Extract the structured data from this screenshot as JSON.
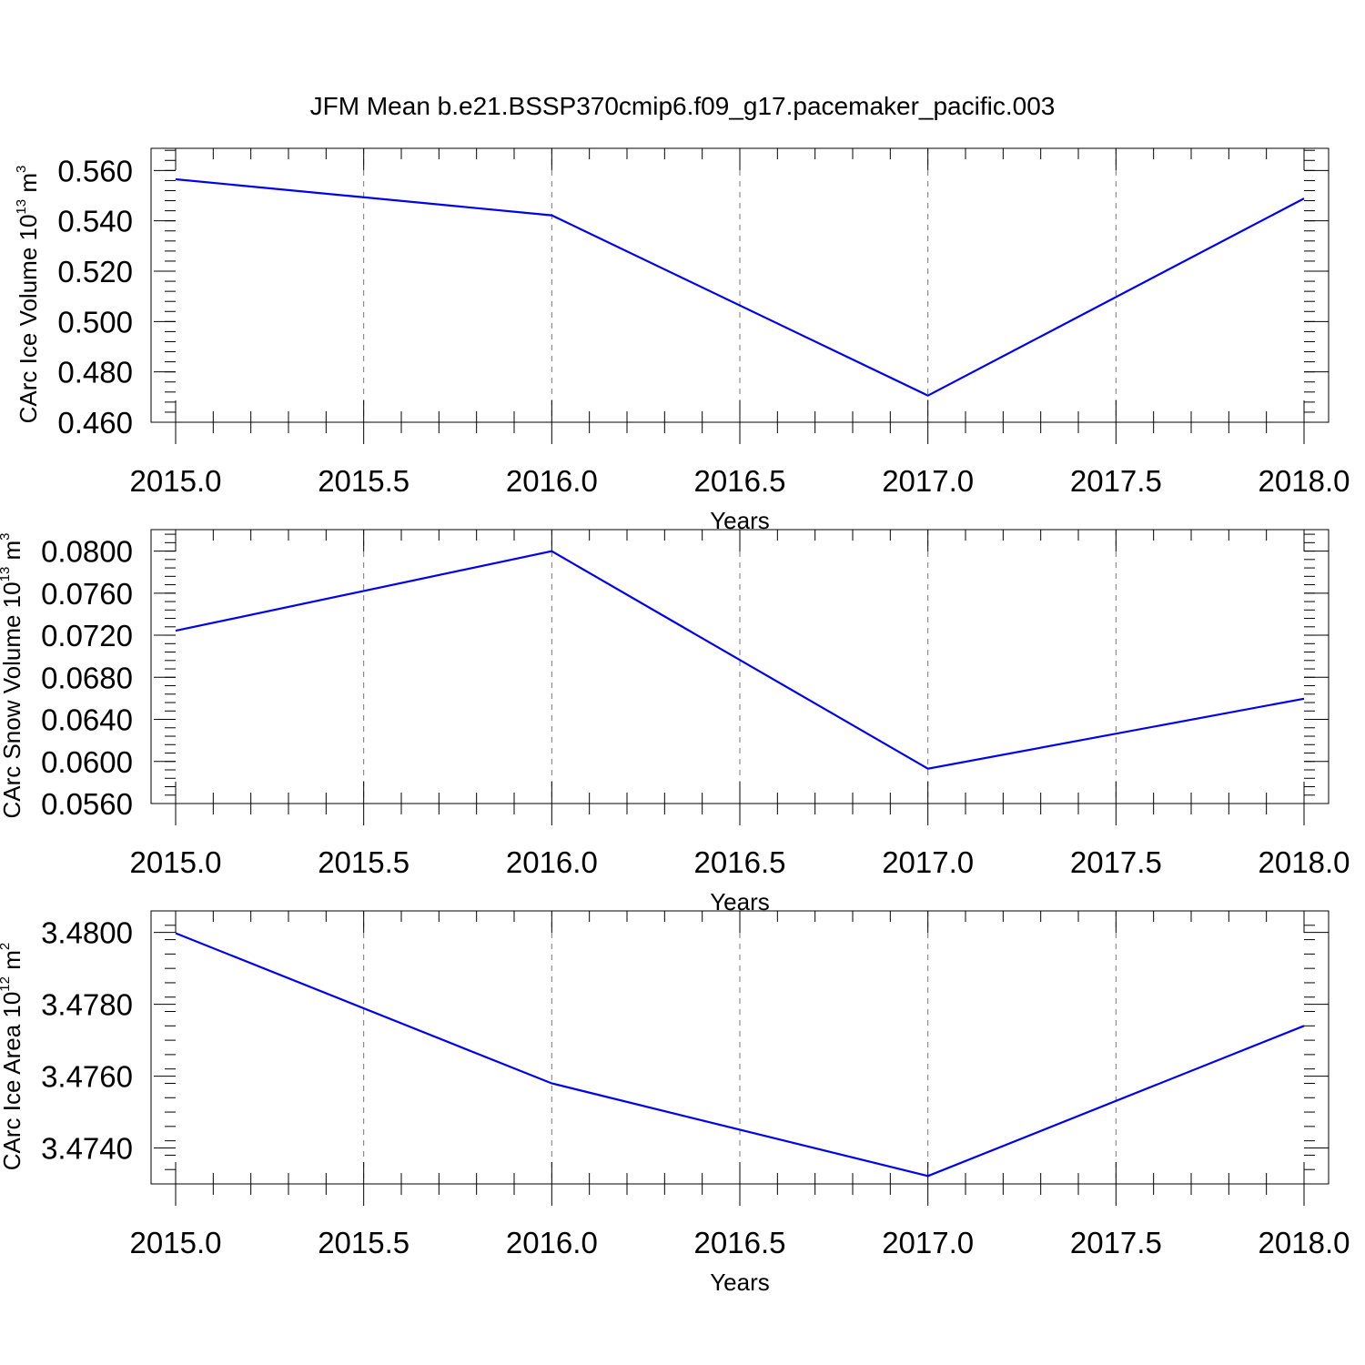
{
  "title": "JFM Mean b.e21.BSSP370cmip6.f09_g17.pacemaker_pacific.003",
  "colors": {
    "series": "#0000ee",
    "grid": "#777777"
  },
  "chart_data": [
    {
      "type": "line",
      "xlabel": "Years",
      "ylabel": {
        "text": "CArc Ice Volume 10",
        "sup": "13",
        "unit": " m",
        "unit_sup": "3"
      },
      "xlim": [
        2015.0,
        2018.0
      ],
      "ylim": [
        0.46,
        0.5688
      ],
      "x_ticks": [
        "2015.0",
        "2015.5",
        "2016.0",
        "2016.5",
        "2017.0",
        "2017.5",
        "2018.0"
      ],
      "y_ticks": [
        0.46,
        0.48,
        0.5,
        0.52,
        0.54,
        0.56
      ],
      "y_tick_labels": [
        "0.460",
        "0.480",
        "0.500",
        "0.520",
        "0.540",
        "0.560"
      ],
      "y_minor_step": 0.004,
      "grid": "x-dashed",
      "series": [
        {
          "x": [
            2015.0,
            2016.0,
            2017.0,
            2018.0
          ],
          "y": [
            0.5565,
            0.5422,
            0.4706,
            0.5489
          ]
        }
      ]
    },
    {
      "type": "line",
      "xlabel": "Years",
      "ylabel": {
        "text": "CArc Snow Volume 10",
        "sup": "13",
        "unit": " m",
        "unit_sup": "3"
      },
      "xlim": [
        2015.0,
        2018.0
      ],
      "ylim": [
        0.056,
        0.08204
      ],
      "x_ticks": [
        "2015.0",
        "2015.5",
        "2016.0",
        "2016.5",
        "2017.0",
        "2017.5",
        "2018.0"
      ],
      "y_ticks": [
        0.056,
        0.06,
        0.064,
        0.068,
        0.072,
        0.076,
        0.08
      ],
      "y_tick_labels": [
        "0.0560",
        "0.0600",
        "0.0640",
        "0.0680",
        "0.0720",
        "0.0760",
        "0.0800"
      ],
      "y_minor_step": 0.0008,
      "grid": "x-dashed",
      "series": [
        {
          "x": [
            2015.0,
            2016.0,
            2017.0,
            2018.0
          ],
          "y": [
            0.07243,
            0.07999,
            0.05931,
            0.06597
          ]
        }
      ]
    },
    {
      "type": "line",
      "xlabel": "Years",
      "ylabel": {
        "text": "CArc Ice Area 10",
        "sup": "12",
        "unit": " m",
        "unit_sup": "2"
      },
      "xlim": [
        2015.0,
        2018.0
      ],
      "ylim": [
        3.473,
        3.4806
      ],
      "x_ticks": [
        "2015.0",
        "2015.5",
        "2016.0",
        "2016.5",
        "2017.0",
        "2017.5",
        "2018.0"
      ],
      "y_ticks": [
        3.474,
        3.476,
        3.478,
        3.48
      ],
      "y_tick_labels": [
        "3.4740",
        "3.4760",
        "3.4780",
        "3.4800"
      ],
      "y_minor_step": 0.0004,
      "grid": "x-dashed",
      "series": [
        {
          "x": [
            2015.0,
            2016.0,
            2017.0,
            2018.0
          ],
          "y": [
            3.47998,
            3.4758,
            3.47322,
            3.4774
          ]
        }
      ]
    }
  ]
}
